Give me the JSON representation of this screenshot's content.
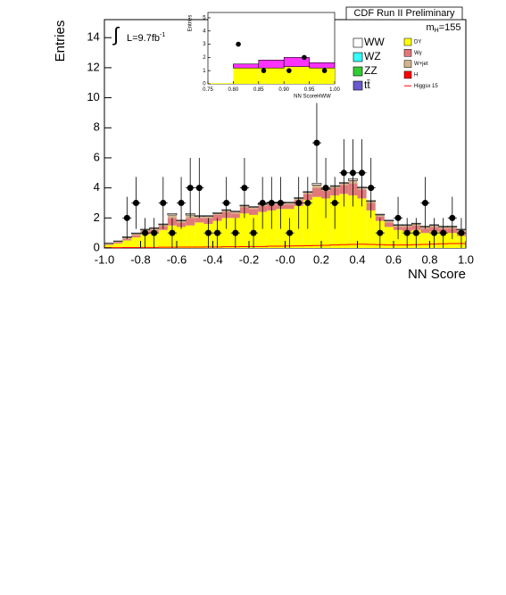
{
  "chart_data": [
    {
      "type": "histogram",
      "title": "CDF Run II Preliminary",
      "mass_label": "m",
      "mass_subscript": "H",
      "mass_value": "=155",
      "lumi_symbol": "∫",
      "lumi_label": "L=9.7fb",
      "lumi_superscript": "-1",
      "x_label": "NN Score",
      "y_label": "Entries",
      "xlim": [
        -1.0,
        1.0
      ],
      "ylim": [
        0,
        15.2
      ],
      "xticks": [
        {
          "value": -1.0,
          "label": "-1.0"
        },
        {
          "value": -0.8,
          "label": "-0.8"
        },
        {
          "value": -0.6,
          "label": "-0.6"
        },
        {
          "value": -0.4,
          "label": "-0.4"
        },
        {
          "value": -0.2,
          "label": "-0.2"
        },
        {
          "value": 0,
          "label": "-0.0"
        },
        {
          "value": 0.2,
          "label": "0.2"
        },
        {
          "value": 0.4,
          "label": "0.4"
        },
        {
          "value": 0.6,
          "label": "0.6"
        },
        {
          "value": 0.8,
          "label": "0.8"
        },
        {
          "value": 1.0,
          "label": "1.0"
        }
      ],
      "yticks": [
        0,
        2,
        4,
        6,
        8,
        10,
        12,
        14
      ],
      "bins": [
        -1.0,
        -0.95,
        -0.9,
        -0.85,
        -0.8,
        -0.75,
        -0.7,
        -0.65,
        -0.6,
        -0.55,
        -0.5,
        -0.45,
        -0.4,
        -0.35,
        -0.3,
        -0.25,
        -0.2,
        -0.15,
        -0.1,
        -0.05,
        0.0,
        0.05,
        0.1,
        0.15,
        0.2,
        0.25,
        0.3,
        0.35,
        0.4,
        0.45,
        0.5,
        0.55,
        0.6,
        0.65,
        0.7,
        0.75,
        0.8,
        0.85,
        0.9,
        0.95,
        1.0
      ],
      "series": [
        {
          "name": "DY",
          "color": "#ffff00",
          "values": [
            0.2,
            0.3,
            0.5,
            0.7,
            0.9,
            1.0,
            1.2,
            1.5,
            1.4,
            1.5,
            1.7,
            1.6,
            1.8,
            2.0,
            2.0,
            2.3,
            2.2,
            2.4,
            2.5,
            2.6,
            2.6,
            2.8,
            3.2,
            3.4,
            3.3,
            3.5,
            3.6,
            3.5,
            3.3,
            2.5,
            1.8,
            1.4,
            1.2,
            1.1,
            1.2,
            1.0,
            1.1,
            1.0,
            1.0,
            0.8
          ]
        },
        {
          "name": "Wγ",
          "color": "#e07a7a",
          "values": [
            0.05,
            0.1,
            0.1,
            0.15,
            0.2,
            0.2,
            0.25,
            0.5,
            0.3,
            0.5,
            0.3,
            0.4,
            0.4,
            0.4,
            0.3,
            0.4,
            0.4,
            0.4,
            0.4,
            0.3,
            0.3,
            0.4,
            0.4,
            0.6,
            0.5,
            0.5,
            0.6,
            0.8,
            0.6,
            0.5,
            0.3,
            0.3,
            0.2,
            0.3,
            0.3,
            0.3,
            0.3,
            0.3,
            0.3,
            0.3
          ]
        },
        {
          "name": "W+jet",
          "color": "#d2b48c",
          "values": [
            0.05,
            0.05,
            0.1,
            0.1,
            0.1,
            0.1,
            0.1,
            0.2,
            0.1,
            0.2,
            0.1,
            0.1,
            0.1,
            0.1,
            0.1,
            0.1,
            0.1,
            0.1,
            0.1,
            0.1,
            0.1,
            0.1,
            0.1,
            0.2,
            0.1,
            0.1,
            0.1,
            0.2,
            0.1,
            0.1,
            0.1,
            0.1,
            0.1,
            0.1,
            0.1,
            0.1,
            0.1,
            0.1,
            0.1,
            0.1
          ]
        },
        {
          "name": "WW",
          "color": "#ffffff",
          "values": [
            0.02,
            0.02,
            0.05,
            0.05,
            0.05,
            0.05,
            0.05,
            0.1,
            0.05,
            0.1,
            0.05,
            0.05,
            0.05,
            0.05,
            0.05,
            0.05,
            0.05,
            0.05,
            0.05,
            0.05,
            0.05,
            0.05,
            0.05,
            0.1,
            0.05,
            0.05,
            0.05,
            0.1,
            0.05,
            0.05,
            0.05,
            0.05,
            0.05,
            0.05,
            0.05,
            0.05,
            0.05,
            0.05,
            0.05,
            0.05
          ]
        }
      ],
      "signal": {
        "name": "Higgsx 15",
        "color": "#ff0000",
        "values": [
          0.02,
          0.02,
          0.03,
          0.03,
          0.04,
          0.04,
          0.05,
          0.05,
          0.06,
          0.06,
          0.06,
          0.07,
          0.07,
          0.08,
          0.08,
          0.09,
          0.1,
          0.1,
          0.12,
          0.12,
          0.13,
          0.14,
          0.15,
          0.16,
          0.18,
          0.2,
          0.22,
          0.24,
          0.25,
          0.24,
          0.22,
          0.2,
          0.2,
          0.2,
          0.22,
          0.24,
          0.26,
          0.28,
          0.3,
          0.3
        ]
      },
      "data": {
        "color": "#000000",
        "values": [
          null,
          null,
          2,
          3,
          1,
          1,
          3,
          1,
          3,
          4,
          4,
          1,
          1,
          3,
          1,
          4,
          1,
          3,
          3,
          3,
          1,
          3,
          3,
          7,
          4,
          3,
          5,
          5,
          5,
          4,
          1,
          null,
          2,
          1,
          1,
          3,
          1,
          1,
          2,
          1
        ],
        "errors": [
          null,
          null,
          1.41,
          1.73,
          1,
          1,
          1.73,
          1,
          1.73,
          2,
          2,
          1,
          1,
          1.73,
          1,
          2,
          1,
          1.73,
          1.73,
          1.73,
          1,
          1.73,
          1.73,
          2.65,
          2,
          1.73,
          2.24,
          2.24,
          2.24,
          2,
          1,
          null,
          1.41,
          1,
          1,
          1.73,
          1,
          1,
          1.41,
          1
        ]
      },
      "legend": [
        {
          "name": "WW",
          "color": "#ffffff"
        },
        {
          "name": "WZ",
          "color": "#33ffff"
        },
        {
          "name": "ZZ",
          "color": "#33cc33"
        },
        {
          "name": "tt̄",
          "color": "#6a5acd"
        },
        {
          "name": "DY",
          "color": "#ffff00"
        },
        {
          "name": "Wγ",
          "color": "#e07a7a"
        },
        {
          "name": "W+jet",
          "color": "#d2b48c"
        },
        {
          "name": "H",
          "color": "#ff0000"
        },
        {
          "name": "Higgsx 15",
          "color": "#ff0000"
        }
      ]
    },
    {
      "type": "histogram",
      "x_label": "NN ScoreHWW",
      "y_label": "Entries",
      "xlim": [
        0.75,
        1.0
      ],
      "ylim": [
        0,
        5.4
      ],
      "xticks": [
        0.75,
        {
          "value": 0.8,
          "label": "0.80"
        },
        0.85,
        {
          "value": 0.9,
          "label": "0.90"
        },
        0.95,
        {
          "value": 1.0,
          "label": "1.00"
        }
      ],
      "yticks": [
        0,
        1,
        2,
        3,
        4,
        5
      ],
      "bins": [
        0.75,
        0.8,
        0.85,
        0.9,
        0.95,
        1.0
      ],
      "series": [
        {
          "name": "DY",
          "color": "#ffff00",
          "values": [
            0.05,
            1.2,
            1.2,
            1.3,
            1.2
          ]
        },
        {
          "name": "Wγ",
          "color": "#ff33ff",
          "values": [
            0,
            0.3,
            0.6,
            0.7,
            0.4
          ]
        }
      ],
      "data": {
        "color": "#000000",
        "x": [
          0.81,
          0.86,
          0.91,
          0.94,
          0.98
        ],
        "values": [
          3,
          1,
          1,
          2,
          1
        ]
      }
    }
  ]
}
